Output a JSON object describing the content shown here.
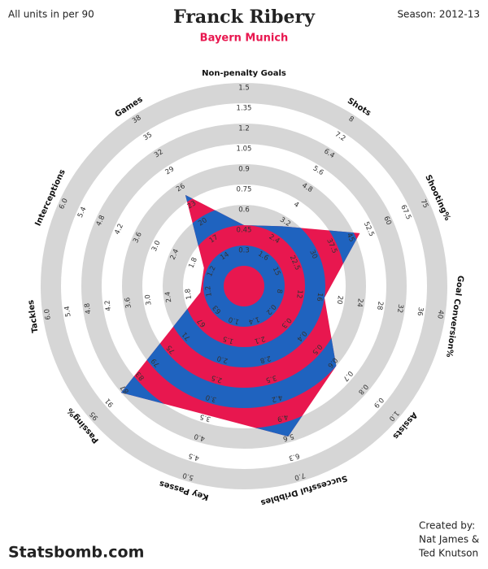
{
  "chart_data": {
    "type": "radar",
    "title": "Franck Ribery",
    "subtitle": "Bayern Munich",
    "note_left": "All units in per 90",
    "note_right": "Season: 2012-13",
    "footer_left": "Statsbomb.com",
    "credits": [
      "Created by:",
      "Nat James &",
      "Ted Knutson"
    ],
    "colors": {
      "inner": "#e8174f",
      "outer": "#1f63bf",
      "ring": "#d6d6d6",
      "subtitle": "#e8174f"
    },
    "axes": [
      {
        "name": "Non-penalty Goals",
        "lim": [
          0,
          1.5
        ],
        "ticks": [
          0.3,
          0.45,
          0.6,
          0.75,
          0.9,
          1.05,
          1.2,
          1.35,
          1.5
        ],
        "value": 0.45
      },
      {
        "name": "Shots",
        "lim": [
          0,
          8
        ],
        "ticks": [
          1.6,
          2.4,
          3.2,
          4,
          4.8,
          5.6,
          6.4,
          7.2,
          8
        ],
        "value": 2.8
      },
      {
        "name": "Shooting%",
        "lim": [
          0,
          75
        ],
        "ticks": [
          15,
          22.5,
          30,
          37.5,
          45,
          52.5,
          60,
          67.5,
          75
        ],
        "value": 47
      },
      {
        "name": "Goal Conversion%",
        "lim": [
          0,
          40
        ],
        "ticks": [
          8,
          12,
          16,
          20,
          24,
          28,
          32,
          36,
          40
        ],
        "value": 16
      },
      {
        "name": "Assists",
        "lim": [
          0,
          1
        ],
        "ticks": [
          0.2,
          0.3,
          0.4,
          0.5,
          0.6,
          0.7,
          0.8,
          0.9,
          {
            "value": 1,
            "label": "1.0"
          }
        ],
        "value": 0.6
      },
      {
        "name": "Successful Dribbles",
        "lim": [
          0,
          7
        ],
        "ticks": [
          1.4,
          2.1,
          2.8,
          3.5,
          4.2,
          4.9,
          5.6,
          6.3,
          {
            "value": 7,
            "label": "7.0"
          }
        ],
        "value": 5.4
      },
      {
        "name": "Key Passes",
        "lim": [
          0,
          5
        ],
        "ticks": [
          {
            "value": 1,
            "label": "1.0"
          },
          1.5,
          {
            "value": 2,
            "label": "2.0"
          },
          2.5,
          {
            "value": 3,
            "label": "3.0"
          },
          3.5,
          {
            "value": 4,
            "label": "4.0"
          },
          4.5,
          {
            "value": 5,
            "label": "5.0"
          }
        ],
        "value": 3.3
      },
      {
        "name": "Passing%",
        "lim": [
          55,
          95
        ],
        "ticks": [
          63,
          67,
          71,
          75,
          79,
          83,
          87,
          91,
          95
        ],
        "value": 87
      },
      {
        "name": "Tackles",
        "lim": [
          0,
          6
        ],
        "ticks": [
          1.2,
          1.8,
          2.4,
          {
            "value": 3,
            "label": "3.0"
          },
          3.6,
          4.2,
          4.8,
          5.4,
          {
            "value": 6,
            "label": "6.0"
          }
        ],
        "value": 1.3
      },
      {
        "name": "Interceptions",
        "lim": [
          0,
          6
        ],
        "ticks": [
          1.2,
          1.8,
          2.4,
          {
            "value": 3,
            "label": "3.0"
          },
          3.6,
          4.2,
          4.8,
          5.4,
          {
            "value": 6,
            "label": "6.0"
          }
        ],
        "value": 1.3
      },
      {
        "name": "Games",
        "lim": [
          8,
          38
        ],
        "ticks": [
          14,
          17,
          20,
          23,
          26,
          29,
          32,
          35,
          38
        ],
        "value": 24
      }
    ]
  }
}
